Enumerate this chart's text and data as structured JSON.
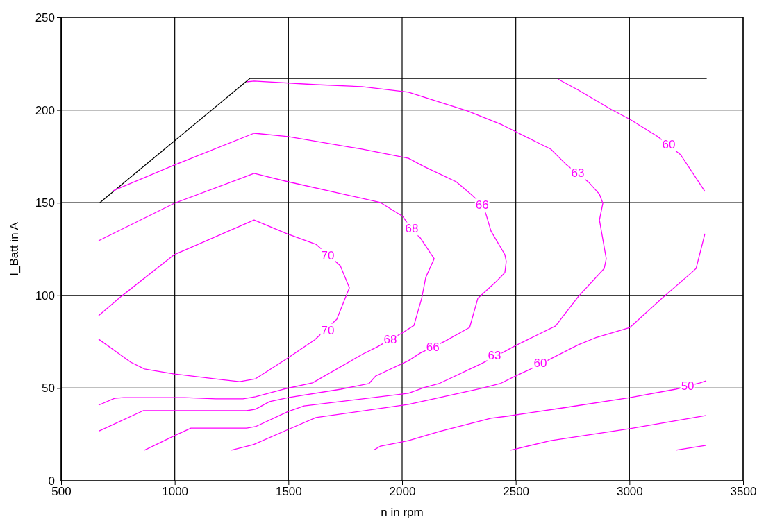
{
  "chart_data": {
    "type": "line",
    "xlabel": "n in rpm",
    "ylabel": "I_Batt in A",
    "xlim": [
      500,
      3500
    ],
    "xticks": [
      500,
      1000,
      1500,
      2000,
      2500,
      3000,
      3500
    ],
    "ylim": [
      0,
      250
    ],
    "yticks": [
      0,
      50,
      100,
      150,
      200,
      250
    ],
    "grid": true,
    "marker": "none",
    "line_style": "solid",
    "series": [
      {
        "color": "#000000",
        "x": [
          670,
          1330,
          3340
        ],
        "values": [
          150,
          217,
          217
        ]
      },
      {
        "color": "#ff00ff",
        "x": [
          665,
          766,
          998,
          1349,
          1493,
          1621,
          1728,
          1768,
          1713,
          1615,
          1493,
          1355,
          1285,
          1203,
          998,
          867,
          806,
          665
        ],
        "values": [
          89.1,
          99.6,
          122.0,
          140.7,
          133.3,
          127.6,
          116.0,
          104.1,
          87.2,
          76.0,
          65.9,
          55.0,
          53.5,
          54.6,
          57.6,
          60.3,
          64.0,
          76.4
        ]
      },
      {
        "color": "#ff00ff",
        "x": [
          665,
          998,
          1349,
          1499,
          1905,
          2003,
          2040,
          2080,
          2141,
          2104,
          2086,
          2052,
          2000,
          1945,
          1890,
          1829,
          1606,
          1478,
          1355,
          1300,
          1181,
          1044,
          775,
          735,
          665
        ],
        "values": [
          129.5,
          149.7,
          165.8,
          161.3,
          150.1,
          142.6,
          135.9,
          131.0,
          119.8,
          109.7,
          98.4,
          83.8,
          79.7,
          76.0,
          72.2,
          68.5,
          52.8,
          49.4,
          45.3,
          44.2,
          44.2,
          44.9,
          44.9,
          44.5,
          40.8
        ]
      },
      {
        "color": "#ff00ff",
        "x": [
          729,
          998,
          1349,
          1499,
          1823,
          2028,
          2095,
          2238,
          2303,
          2352,
          2370,
          2391,
          2452,
          2458,
          2452,
          2410,
          2333,
          2297,
          2187,
          2080,
          2028,
          1884,
          1854,
          1731,
          1499,
          1417,
          1355,
          1316,
          1111,
          861,
          668
        ],
        "values": [
          156.5,
          170.3,
          187.5,
          185.7,
          178.9,
          174.0,
          169.6,
          161.3,
          154.6,
          149.0,
          143.4,
          134.7,
          122.0,
          118.3,
          112.3,
          107.0,
          98.4,
          82.7,
          75.2,
          68.9,
          64.8,
          56.5,
          52.4,
          49.4,
          44.9,
          42.7,
          38.6,
          37.8,
          37.8,
          37.8,
          26.9
        ]
      },
      {
        "color": "#ff00ff",
        "x": [
          1316,
          1349,
          1621,
          1823,
          2028,
          2095,
          2287,
          2440,
          2605,
          2654,
          2721,
          2822,
          2868,
          2883,
          2868,
          2898,
          2889,
          2776,
          2675,
          2593,
          2501,
          2461,
          2355,
          2330,
          2162,
          2095,
          2028,
          1569,
          1499,
          1355,
          1316,
          1071,
          998,
          867
        ],
        "values": [
          215.2,
          215.6,
          213.7,
          212.6,
          209.6,
          207.0,
          199.5,
          192.0,
          181.9,
          178.9,
          170.7,
          160.9,
          154.6,
          149.7,
          140.7,
          119.8,
          114.5,
          99.5,
          83.5,
          78.6,
          73.0,
          70.4,
          63.6,
          62.1,
          52.4,
          50.2,
          47.2,
          40.4,
          37.4,
          29.2,
          28.4,
          28.4,
          24.3,
          16.5
        ]
      },
      {
        "color": "#ff00ff",
        "x": [
          2685,
          2776,
          2920,
          3002,
          3124,
          3225,
          3332
        ],
        "values": [
          216.7,
          210.7,
          200.3,
          195.0,
          185.7,
          175.9,
          156.1
        ]
      },
      {
        "color": "#ff00ff",
        "x": [
          3332,
          3293,
          3277,
          3143,
          3002,
          2850,
          2776,
          2666,
          2559,
          2492,
          2431,
          2348,
          2028,
          1621,
          1499,
          1346,
          1249
        ],
        "values": [
          133.3,
          114.5,
          112.7,
          98.4,
          82.7,
          77.1,
          73.4,
          66.6,
          59.9,
          56.1,
          52.4,
          49.8,
          41.2,
          34.1,
          27.7,
          19.5,
          16.5
        ]
      },
      {
        "color": "#ff00ff",
        "x": [
          1875,
          1905,
          2028,
          2165,
          2391,
          2461,
          2706,
          3002,
          3204,
          3311,
          3338
        ],
        "values": [
          16.5,
          18.7,
          21.7,
          26.6,
          33.7,
          34.8,
          39.3,
          44.9,
          49.4,
          52.8,
          53.9
        ]
      },
      {
        "color": "#ff00ff",
        "x": [
          2477,
          2501,
          2654,
          3002,
          3338
        ],
        "values": [
          16.5,
          17.2,
          21.7,
          28.1,
          35.2
        ]
      },
      {
        "color": "#ff00ff",
        "x": [
          3204,
          3338
        ],
        "values": [
          16.5,
          19.1
        ]
      }
    ],
    "annotations": [
      {
        "text": "70",
        "x": 1673,
        "y": 121.6
      },
      {
        "text": "70",
        "x": 1673,
        "y": 81.2
      },
      {
        "text": "68",
        "x": 2043,
        "y": 135.9
      },
      {
        "text": "68",
        "x": 1948,
        "y": 76.0
      },
      {
        "text": "66",
        "x": 2352,
        "y": 148.6
      },
      {
        "text": "66",
        "x": 2135,
        "y": 72.2
      },
      {
        "text": "63",
        "x": 2773,
        "y": 165.8
      },
      {
        "text": "63",
        "x": 2406,
        "y": 67.4
      },
      {
        "text": "60",
        "x": 3173,
        "y": 181.5
      },
      {
        "text": "60",
        "x": 2608,
        "y": 63.3
      },
      {
        "text": "50",
        "x": 3256,
        "y": 50.9
      }
    ]
  }
}
